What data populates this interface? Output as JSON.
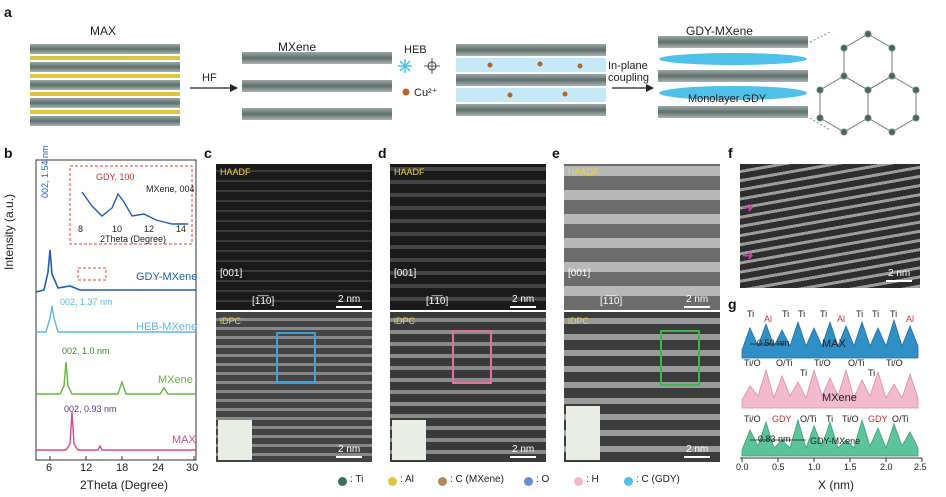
{
  "panels": {
    "a": "a",
    "b": "b",
    "c": "c",
    "d": "d",
    "e": "e",
    "f": "f",
    "g": "g"
  },
  "schematic": {
    "max": "MAX",
    "mxene": "MXene",
    "gdy_mxene": "GDY-MXene",
    "hf": "HF",
    "heb": "HEB",
    "cu": "Cu²⁺",
    "in_plane_1": "In-plane",
    "in_plane_2": "coupling",
    "monolayer": "Monolayer GDY"
  },
  "xrd": {
    "ylabel": "Intensity (a.u.)",
    "xlabel": "2Theta (Degree)",
    "xticks": [
      "6",
      "12",
      "18",
      "24",
      "30"
    ],
    "series": [
      {
        "name": "GDY-MXene",
        "peak": "002, 1.54 nm",
        "color": "#1f5fb0"
      },
      {
        "name": "HEB-MXene",
        "peak": "002, 1.37 nm",
        "color": "#5ab8e6"
      },
      {
        "name": "MXene",
        "peak": "002, 1.0 nm",
        "color": "#63b83a"
      },
      {
        "name": "MAX",
        "peak": "002, 0.93 nm",
        "color": "#d14b8f"
      }
    ],
    "inset": {
      "gdy": "GDY, 100",
      "mxene": "MXene, 004",
      "xlabel": "2Theta (Degree)",
      "xticks": [
        "8",
        "10",
        "12",
        "14"
      ]
    }
  },
  "stem": {
    "haadf": "HAADF",
    "idpc": "iDPC",
    "zone": "[001]",
    "dir": "[1̅1̅0]",
    "scale": "2 nm"
  },
  "legend": [
    {
      "label": ": Ti",
      "color": "#3c6e5a"
    },
    {
      "label": ": Al",
      "color": "#e0c640"
    },
    {
      "label": ": C (MXene)",
      "color": "#b08a5a"
    },
    {
      "label": ": O",
      "color": "#6a8ed0"
    },
    {
      "label": ": H",
      "color": "#f4b8c8"
    },
    {
      "label": ": C (GDY)",
      "color": "#4fc0e8"
    }
  ],
  "profiles": {
    "max": "MAX",
    "mxene": "MXene",
    "gdy": "GDY-MXene",
    "d_max": "0.50 nm",
    "d_gdy": "0.83 nm",
    "xlabel": "X (nm)",
    "xticks": [
      "0.0",
      "0.5",
      "1.0",
      "1.5",
      "2.0",
      "2.5"
    ],
    "max_labels": [
      "Ti",
      "Al",
      "Ti",
      "Ti",
      "Ti",
      "Al",
      "Ti",
      "Ti",
      "Ti",
      "Al"
    ],
    "mx_labels": [
      "Ti/O",
      "O/Ti",
      "Ti",
      "Ti/O",
      "O/Ti",
      "Ti",
      "Ti/O"
    ],
    "g_labels": [
      "Ti/O",
      "GDY",
      "O/Ti",
      "Ti",
      "Ti/O",
      "GDY",
      "O/Ti"
    ]
  }
}
